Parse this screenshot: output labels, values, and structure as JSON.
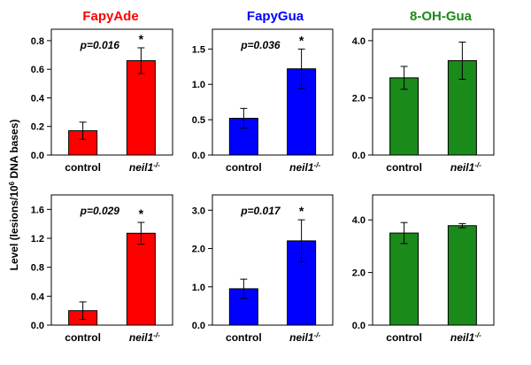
{
  "figure": {
    "ylabel": "Level (lesions/10",
    "ylabel_sup": "6",
    "ylabel_tail": " DNA bases)"
  },
  "column_titles": [
    {
      "text": "FapyAde",
      "color": "#ff0000"
    },
    {
      "text": "FapyGua",
      "color": "#0000ff"
    },
    {
      "text": "8-OH-Gua",
      "color": "#1a8a1a"
    }
  ],
  "category_labels": {
    "control": "control",
    "mutant_base": "neil1",
    "mutant_sup": "-/-"
  },
  "chart_data": [
    {
      "type": "bar",
      "panel": "FapyAde (top)",
      "categories": [
        "control",
        "neil1-/-"
      ],
      "values": [
        0.17,
        0.66
      ],
      "errors": [
        0.06,
        0.09
      ],
      "ylim": [
        0,
        0.88
      ],
      "yticks": [
        "0.0",
        "0.2",
        "0.4",
        "0.6",
        "0.8"
      ],
      "annotation": "p=0.016",
      "significance": "*",
      "color": "#ff0000"
    },
    {
      "type": "bar",
      "panel": "FapyGua (top)",
      "categories": [
        "control",
        "neil1-/-"
      ],
      "values": [
        0.52,
        1.22
      ],
      "errors": [
        0.14,
        0.28
      ],
      "ylim": [
        0,
        1.78
      ],
      "yticks": [
        "0.0",
        "0.5",
        "1.0",
        "1.5"
      ],
      "annotation": "p=0.036",
      "significance": "*",
      "color": "#0000ff"
    },
    {
      "type": "bar",
      "panel": "8-OH-Gua (top)",
      "categories": [
        "control",
        "neil1-/-"
      ],
      "values": [
        2.7,
        3.3
      ],
      "errors": [
        0.4,
        0.65
      ],
      "ylim": [
        0,
        4.4
      ],
      "yticks": [
        "0.0",
        "2.0",
        "4.0"
      ],
      "annotation": "",
      "significance": "",
      "color": "#1a8a1a"
    },
    {
      "type": "bar",
      "panel": "FapyAde (bottom)",
      "categories": [
        "control",
        "neil1-/-"
      ],
      "values": [
        0.2,
        1.27
      ],
      "errors": [
        0.12,
        0.15
      ],
      "ylim": [
        0,
        1.8
      ],
      "yticks": [
        "0.0",
        "0.4",
        "0.8",
        "1.2",
        "1.6"
      ],
      "annotation": "p=0.029",
      "significance": "*",
      "color": "#ff0000"
    },
    {
      "type": "bar",
      "panel": "FapyGua (bottom)",
      "categories": [
        "control",
        "neil1-/-"
      ],
      "values": [
        0.95,
        2.2
      ],
      "errors": [
        0.25,
        0.55
      ],
      "ylim": [
        0,
        3.4
      ],
      "yticks": [
        "0.0",
        "1.0",
        "2.0",
        "3.0"
      ],
      "annotation": "p=0.017",
      "significance": "*",
      "color": "#0000ff"
    },
    {
      "type": "bar",
      "panel": "8-OH-Gua (bottom)",
      "categories": [
        "control",
        "neil1-/-"
      ],
      "values": [
        3.5,
        3.78
      ],
      "errors": [
        0.4,
        0.08
      ],
      "ylim": [
        0,
        4.95
      ],
      "yticks": [
        "0.0",
        "2.0",
        "4.0"
      ],
      "annotation": "",
      "significance": "",
      "color": "#1a8a1a"
    }
  ]
}
